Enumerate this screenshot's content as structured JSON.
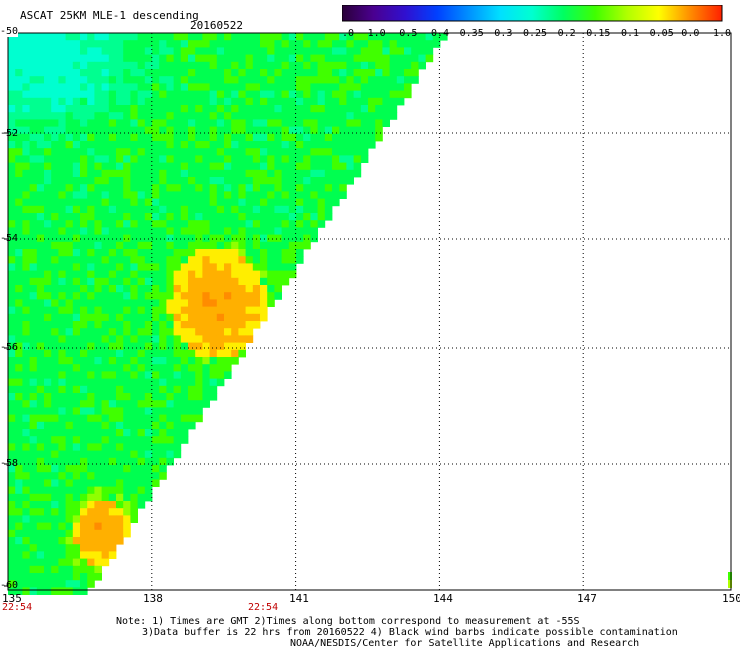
{
  "header": {
    "title": "ASCAT 25KM MLE-1 descending",
    "date": "20160522"
  },
  "colorbar": {
    "tick_labels": [
      "-3.0",
      "-1.0",
      "-0.5",
      "-0.4",
      "-0.35",
      "-0.3",
      "-0.25",
      "-0.2",
      "-0.15",
      "-0.1",
      "-0.05",
      "0.0",
      "1.0"
    ],
    "colors": [
      "#2a0038",
      "#4a0090",
      "#3010d0",
      "#0040ff",
      "#0090ff",
      "#00e0ff",
      "#00ffd0",
      "#00ff60",
      "#40ff00",
      "#b0ff00",
      "#ffff00",
      "#ff8c00",
      "#ff2000"
    ]
  },
  "map_data": {
    "lon_ticks": [
      "135",
      "138",
      "141",
      "144",
      "147",
      "150"
    ],
    "lat_ticks": [
      "-50",
      "-52",
      "-54",
      "-56",
      "-58",
      "-60"
    ],
    "lon_range": [
      135,
      150
    ],
    "lat_range": [
      -50,
      -60
    ],
    "grid": true,
    "time_labels": [
      "22:54",
      "22:54"
    ],
    "time_color": "#c00000"
  },
  "footer": {
    "line1": "Note: 1) Times are GMT 2)Times along bottom correspond to measurement at -55S",
    "line2": "3)Data buffer is 22 hrs from 20160522 4) Black wind barbs indicate possible contamination",
    "line3": "NOAA/NESDIS/Center for Satellite Applications and Research"
  }
}
